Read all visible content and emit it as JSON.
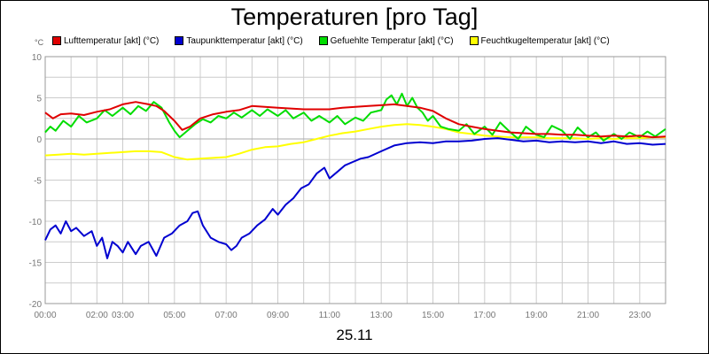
{
  "chart_data": {
    "type": "line",
    "title": "Temperaturen [pro Tag]",
    "ylabel": "°C",
    "xlabel": "25.11",
    "xlim": [
      0,
      24
    ],
    "ylim": [
      -20,
      10
    ],
    "y_ticks": [
      10,
      5,
      0,
      -5,
      -10,
      -15,
      -20
    ],
    "x_ticks": [
      {
        "value": 0,
        "label": "00:00"
      },
      {
        "value": 2,
        "label": "02:00"
      },
      {
        "value": 3,
        "label": "03:00"
      },
      {
        "value": 5,
        "label": "05:00"
      },
      {
        "value": 7,
        "label": "07:00"
      },
      {
        "value": 9,
        "label": "09:00"
      },
      {
        "value": 11,
        "label": "11:00"
      },
      {
        "value": 13,
        "label": "13:00"
      },
      {
        "value": 15,
        "label": "15:00"
      },
      {
        "value": 17,
        "label": "17:00"
      },
      {
        "value": 19,
        "label": "19:00"
      },
      {
        "value": 21,
        "label": "21:00"
      },
      {
        "value": 23,
        "label": "23:00"
      }
    ],
    "grid": true,
    "legend_position": "top",
    "series": [
      {
        "name": "Lufttemperatur [akt] (°C)",
        "color": "#e00000",
        "points": [
          [
            0,
            3.2
          ],
          [
            0.3,
            2.5
          ],
          [
            0.6,
            3.0
          ],
          [
            1,
            3.1
          ],
          [
            1.5,
            2.9
          ],
          [
            2,
            3.3
          ],
          [
            2.5,
            3.6
          ],
          [
            3,
            4.2
          ],
          [
            3.5,
            4.5
          ],
          [
            4,
            4.2
          ],
          [
            4.3,
            4.0
          ],
          [
            4.6,
            3.4
          ],
          [
            5,
            2.2
          ],
          [
            5.3,
            1.1
          ],
          [
            5.6,
            1.5
          ],
          [
            6,
            2.5
          ],
          [
            6.5,
            3.0
          ],
          [
            7,
            3.3
          ],
          [
            7.5,
            3.5
          ],
          [
            8,
            4.0
          ],
          [
            8.5,
            3.9
          ],
          [
            9,
            3.8
          ],
          [
            9.5,
            3.7
          ],
          [
            10,
            3.6
          ],
          [
            10.5,
            3.6
          ],
          [
            11,
            3.6
          ],
          [
            11.5,
            3.8
          ],
          [
            12,
            3.9
          ],
          [
            12.5,
            4.0
          ],
          [
            13,
            4.1
          ],
          [
            13.5,
            4.2
          ],
          [
            14,
            4.0
          ],
          [
            14.5,
            3.8
          ],
          [
            15,
            3.4
          ],
          [
            15.5,
            2.5
          ],
          [
            16,
            1.8
          ],
          [
            16.5,
            1.5
          ],
          [
            17,
            1.2
          ],
          [
            17.5,
            1.0
          ],
          [
            18,
            0.8
          ],
          [
            18.5,
            0.7
          ],
          [
            19,
            0.6
          ],
          [
            19.5,
            0.6
          ],
          [
            20,
            0.5
          ],
          [
            20.5,
            0.5
          ],
          [
            21,
            0.4
          ],
          [
            21.5,
            0.3
          ],
          [
            22,
            0.4
          ],
          [
            22.5,
            0.3
          ],
          [
            23,
            0.4
          ],
          [
            23.5,
            0.2
          ],
          [
            24,
            0.3
          ]
        ]
      },
      {
        "name": "Taupunkttemperatur [akt] (°C)",
        "color": "#0000d0",
        "points": [
          [
            0,
            -12.3
          ],
          [
            0.2,
            -11.0
          ],
          [
            0.4,
            -10.5
          ],
          [
            0.6,
            -11.5
          ],
          [
            0.8,
            -10.0
          ],
          [
            1,
            -11.2
          ],
          [
            1.2,
            -10.8
          ],
          [
            1.5,
            -11.8
          ],
          [
            1.8,
            -11.2
          ],
          [
            2,
            -13.0
          ],
          [
            2.2,
            -12.0
          ],
          [
            2.4,
            -14.5
          ],
          [
            2.6,
            -12.5
          ],
          [
            2.8,
            -13.0
          ],
          [
            3,
            -13.8
          ],
          [
            3.2,
            -12.5
          ],
          [
            3.5,
            -14.0
          ],
          [
            3.7,
            -13.0
          ],
          [
            4,
            -12.5
          ],
          [
            4.3,
            -14.2
          ],
          [
            4.6,
            -12.0
          ],
          [
            4.9,
            -11.5
          ],
          [
            5.2,
            -10.5
          ],
          [
            5.5,
            -10.0
          ],
          [
            5.7,
            -9.0
          ],
          [
            5.9,
            -8.8
          ],
          [
            6.1,
            -10.5
          ],
          [
            6.4,
            -12.0
          ],
          [
            6.7,
            -12.5
          ],
          [
            7,
            -12.8
          ],
          [
            7.2,
            -13.5
          ],
          [
            7.4,
            -13.0
          ],
          [
            7.6,
            -12.0
          ],
          [
            7.9,
            -11.5
          ],
          [
            8.2,
            -10.5
          ],
          [
            8.5,
            -9.8
          ],
          [
            8.8,
            -8.5
          ],
          [
            9,
            -9.2
          ],
          [
            9.3,
            -8.0
          ],
          [
            9.6,
            -7.2
          ],
          [
            9.9,
            -6.0
          ],
          [
            10.2,
            -5.5
          ],
          [
            10.5,
            -4.2
          ],
          [
            10.8,
            -3.5
          ],
          [
            11,
            -4.8
          ],
          [
            11.3,
            -4.0
          ],
          [
            11.6,
            -3.2
          ],
          [
            11.9,
            -2.8
          ],
          [
            12.2,
            -2.4
          ],
          [
            12.5,
            -2.2
          ],
          [
            13,
            -1.5
          ],
          [
            13.5,
            -0.8
          ],
          [
            14,
            -0.5
          ],
          [
            14.5,
            -0.4
          ],
          [
            15,
            -0.5
          ],
          [
            15.5,
            -0.3
          ],
          [
            16,
            -0.3
          ],
          [
            16.5,
            -0.2
          ],
          [
            17,
            0.0
          ],
          [
            17.5,
            0.1
          ],
          [
            18,
            -0.1
          ],
          [
            18.5,
            -0.3
          ],
          [
            19,
            -0.2
          ],
          [
            19.5,
            -0.4
          ],
          [
            20,
            -0.3
          ],
          [
            20.5,
            -0.4
          ],
          [
            21,
            -0.3
          ],
          [
            21.5,
            -0.5
          ],
          [
            22,
            -0.3
          ],
          [
            22.5,
            -0.6
          ],
          [
            23,
            -0.5
          ],
          [
            23.5,
            -0.7
          ],
          [
            24,
            -0.6
          ]
        ]
      },
      {
        "name": "Gefuehlte Temperatur [akt] (°C)",
        "color": "#00dd00",
        "points": [
          [
            0,
            0.8
          ],
          [
            0.2,
            1.5
          ],
          [
            0.4,
            1.0
          ],
          [
            0.7,
            2.2
          ],
          [
            1,
            1.5
          ],
          [
            1.3,
            2.8
          ],
          [
            1.6,
            2.0
          ],
          [
            2,
            2.5
          ],
          [
            2.3,
            3.5
          ],
          [
            2.6,
            2.8
          ],
          [
            3,
            3.8
          ],
          [
            3.3,
            3.0
          ],
          [
            3.6,
            4.0
          ],
          [
            3.9,
            3.4
          ],
          [
            4.2,
            4.5
          ],
          [
            4.5,
            3.8
          ],
          [
            4.8,
            2.0
          ],
          [
            5,
            1.0
          ],
          [
            5.2,
            0.2
          ],
          [
            5.5,
            1.0
          ],
          [
            5.8,
            1.8
          ],
          [
            6.1,
            2.4
          ],
          [
            6.4,
            2.0
          ],
          [
            6.7,
            2.8
          ],
          [
            7,
            2.5
          ],
          [
            7.3,
            3.2
          ],
          [
            7.6,
            2.6
          ],
          [
            8,
            3.5
          ],
          [
            8.3,
            2.8
          ],
          [
            8.6,
            3.6
          ],
          [
            9,
            2.8
          ],
          [
            9.3,
            3.5
          ],
          [
            9.6,
            2.5
          ],
          [
            10,
            3.2
          ],
          [
            10.3,
            2.2
          ],
          [
            10.6,
            2.8
          ],
          [
            11,
            2.0
          ],
          [
            11.3,
            2.8
          ],
          [
            11.6,
            1.8
          ],
          [
            12,
            2.6
          ],
          [
            12.3,
            2.2
          ],
          [
            12.6,
            3.2
          ],
          [
            13,
            3.5
          ],
          [
            13.2,
            4.8
          ],
          [
            13.4,
            5.3
          ],
          [
            13.6,
            4.2
          ],
          [
            13.8,
            5.5
          ],
          [
            14,
            4.0
          ],
          [
            14.2,
            5.0
          ],
          [
            14.4,
            3.8
          ],
          [
            14.6,
            3.2
          ],
          [
            14.8,
            2.2
          ],
          [
            15,
            2.8
          ],
          [
            15.3,
            1.5
          ],
          [
            15.6,
            1.2
          ],
          [
            16,
            1.0
          ],
          [
            16.3,
            1.8
          ],
          [
            16.6,
            0.6
          ],
          [
            17,
            1.5
          ],
          [
            17.3,
            0.5
          ],
          [
            17.6,
            2.0
          ],
          [
            18,
            0.8
          ],
          [
            18.3,
            0.0
          ],
          [
            18.6,
            1.5
          ],
          [
            19,
            0.5
          ],
          [
            19.3,
            0.2
          ],
          [
            19.6,
            1.6
          ],
          [
            20,
            1.0
          ],
          [
            20.3,
            0.0
          ],
          [
            20.6,
            1.4
          ],
          [
            21,
            0.2
          ],
          [
            21.3,
            0.8
          ],
          [
            21.6,
            -0.2
          ],
          [
            22,
            0.6
          ],
          [
            22.3,
            0.0
          ],
          [
            22.6,
            0.8
          ],
          [
            23,
            0.2
          ],
          [
            23.3,
            0.9
          ],
          [
            23.6,
            0.3
          ],
          [
            24,
            1.2
          ]
        ]
      },
      {
        "name": "Feuchtkugeltemperatur [akt] (°C)",
        "color": "#ffff00",
        "points": [
          [
            0,
            -2.0
          ],
          [
            0.5,
            -1.9
          ],
          [
            1,
            -1.8
          ],
          [
            1.5,
            -1.9
          ],
          [
            2,
            -1.8
          ],
          [
            2.5,
            -1.7
          ],
          [
            3,
            -1.6
          ],
          [
            3.5,
            -1.5
          ],
          [
            4,
            -1.5
          ],
          [
            4.5,
            -1.6
          ],
          [
            5,
            -2.2
          ],
          [
            5.5,
            -2.5
          ],
          [
            6,
            -2.4
          ],
          [
            6.5,
            -2.3
          ],
          [
            7,
            -2.2
          ],
          [
            7.5,
            -1.8
          ],
          [
            8,
            -1.3
          ],
          [
            8.5,
            -1.0
          ],
          [
            9,
            -0.9
          ],
          [
            9.5,
            -0.6
          ],
          [
            10,
            -0.4
          ],
          [
            10.5,
            0.0
          ],
          [
            11,
            0.4
          ],
          [
            11.5,
            0.7
          ],
          [
            12,
            0.9
          ],
          [
            12.5,
            1.2
          ],
          [
            13,
            1.5
          ],
          [
            13.5,
            1.7
          ],
          [
            14,
            1.8
          ],
          [
            14.5,
            1.7
          ],
          [
            15,
            1.5
          ],
          [
            15.5,
            1.2
          ],
          [
            16,
            0.8
          ],
          [
            16.5,
            0.6
          ],
          [
            17,
            0.4
          ],
          [
            17.5,
            0.3
          ],
          [
            18,
            0.2
          ],
          [
            18.5,
            0.2
          ],
          [
            19,
            0.2
          ],
          [
            19.5,
            0.1
          ],
          [
            20,
            0.1
          ],
          [
            20.5,
            0.1
          ],
          [
            21,
            0.0
          ],
          [
            21.5,
            0.1
          ],
          [
            22,
            0.0
          ],
          [
            22.5,
            0.1
          ],
          [
            23,
            0.1
          ],
          [
            23.5,
            0.2
          ],
          [
            24,
            0.2
          ]
        ]
      }
    ]
  }
}
